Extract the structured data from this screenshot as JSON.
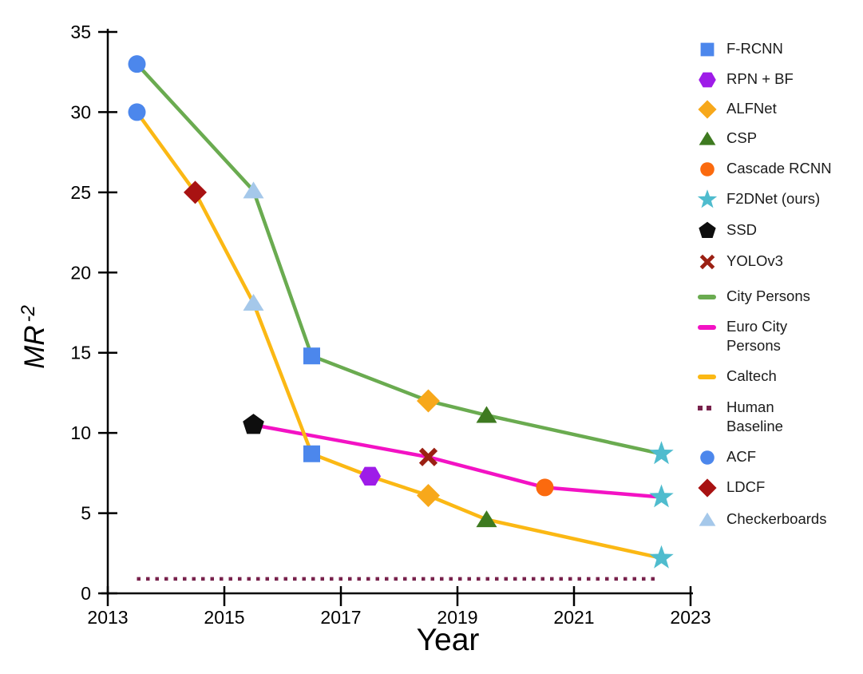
{
  "chart_data": {
    "type": "line",
    "title": "",
    "xlabel": "Year",
    "ylabel": "MR",
    "ylabel_superscript": "-2",
    "xlim": [
      2013,
      2023
    ],
    "ylim": [
      0,
      35
    ],
    "x_ticks": [
      2013,
      2015,
      2017,
      2019,
      2021,
      2023
    ],
    "y_ticks": [
      0,
      5,
      10,
      15,
      20,
      25,
      30,
      35
    ],
    "grid": false,
    "background": "#ffffff",
    "legend_position": "right",
    "markers": {
      "F-RCNN": {
        "shape": "square",
        "color": "#4C87EC"
      },
      "RPN + BF": {
        "shape": "hexagon",
        "color": "#9E1CE8"
      },
      "ALFNet": {
        "shape": "diamond",
        "color": "#F7A81B"
      },
      "CSP": {
        "shape": "triangle",
        "color": "#3E7A20"
      },
      "Cascade RCNN": {
        "shape": "circle",
        "color": "#FB6A0E"
      },
      "F2DNet (ours)": {
        "shape": "star",
        "color": "#4FBCCE"
      },
      "SSD": {
        "shape": "pentagon",
        "color": "#0E0E0E"
      },
      "YOLOv3": {
        "shape": "x",
        "color": "#9B2013"
      },
      "ACF": {
        "shape": "circle",
        "color": "#4C87EC"
      },
      "LDCF": {
        "shape": "diamond",
        "color": "#A81212"
      },
      "Checkerboards": {
        "shape": "triangle",
        "color": "#A5C8EA"
      }
    },
    "series": [
      {
        "name": "City Persons",
        "color": "#6AAB50",
        "style": "solid",
        "points": [
          {
            "x": 2013.5,
            "y": 33.0,
            "method": "ACF"
          },
          {
            "x": 2015.5,
            "y": 25.1,
            "method": "Checkerboards"
          },
          {
            "x": 2016.5,
            "y": 14.8,
            "method": "F-RCNN"
          },
          {
            "x": 2018.5,
            "y": 12.0,
            "method": "ALFNet"
          },
          {
            "x": 2019.5,
            "y": 11.1,
            "method": "CSP"
          },
          {
            "x": 2022.5,
            "y": 8.7,
            "method": "F2DNet (ours)"
          }
        ]
      },
      {
        "name": "Euro City Persons",
        "color": "#F312C4",
        "style": "solid",
        "points": [
          {
            "x": 2015.5,
            "y": 10.5,
            "method": "SSD"
          },
          {
            "x": 2018.5,
            "y": 8.5,
            "method": "YOLOv3"
          },
          {
            "x": 2020.5,
            "y": 6.6,
            "method": "Cascade RCNN"
          },
          {
            "x": 2022.5,
            "y": 6.0,
            "method": "F2DNet (ours)"
          }
        ]
      },
      {
        "name": "Caltech",
        "color": "#FBB814",
        "style": "solid",
        "points": [
          {
            "x": 2013.5,
            "y": 30.0,
            "method": "ACF"
          },
          {
            "x": 2014.5,
            "y": 25.0,
            "method": "LDCF"
          },
          {
            "x": 2015.5,
            "y": 18.1,
            "method": "Checkerboards"
          },
          {
            "x": 2016.5,
            "y": 8.7,
            "method": "F-RCNN"
          },
          {
            "x": 2017.5,
            "y": 7.3,
            "method": "RPN + BF"
          },
          {
            "x": 2018.5,
            "y": 6.1,
            "method": "ALFNet"
          },
          {
            "x": 2019.5,
            "y": 4.6,
            "method": "CSP"
          },
          {
            "x": 2022.5,
            "y": 2.2,
            "method": "F2DNet (ours)"
          }
        ]
      },
      {
        "name": "Human Baseline",
        "color": "#78224C",
        "style": "dotted",
        "points": [
          {
            "x": 2013.5,
            "y": 0.9
          },
          {
            "x": 2022.45,
            "y": 0.9
          }
        ]
      }
    ],
    "legend": [
      {
        "label": "F-RCNN",
        "swatch": "marker",
        "marker": "F-RCNN"
      },
      {
        "label": "RPN + BF",
        "swatch": "marker",
        "marker": "RPN + BF"
      },
      {
        "label": "ALFNet",
        "swatch": "marker",
        "marker": "ALFNet"
      },
      {
        "label": "CSP",
        "swatch": "marker",
        "marker": "CSP"
      },
      {
        "label": "Cascade RCNN",
        "swatch": "marker",
        "marker": "Cascade RCNN"
      },
      {
        "label": "F2DNet (ours)",
        "swatch": "marker",
        "marker": "F2DNet (ours)"
      },
      {
        "label": "SSD",
        "swatch": "marker",
        "marker": "SSD"
      },
      {
        "label": "YOLOv3",
        "swatch": "marker",
        "marker": "YOLOv3"
      },
      {
        "label": "City Persons",
        "swatch": "line",
        "color": "#6AAB50"
      },
      {
        "label": "Euro City Persons",
        "label_lines": [
          "Euro City",
          "Persons"
        ],
        "swatch": "line",
        "color": "#F312C4"
      },
      {
        "label": "Caltech",
        "swatch": "line",
        "color": "#FBB814"
      },
      {
        "label": "Human Baseline",
        "label_lines": [
          "Human",
          "Baseline"
        ],
        "swatch": "dotted-line",
        "color": "#78224C"
      },
      {
        "label": "ACF",
        "swatch": "marker",
        "marker": "ACF"
      },
      {
        "label": "LDCF",
        "swatch": "marker",
        "marker": "LDCF"
      },
      {
        "label": "Checkerboards",
        "swatch": "marker",
        "marker": "Checkerboards"
      }
    ]
  }
}
